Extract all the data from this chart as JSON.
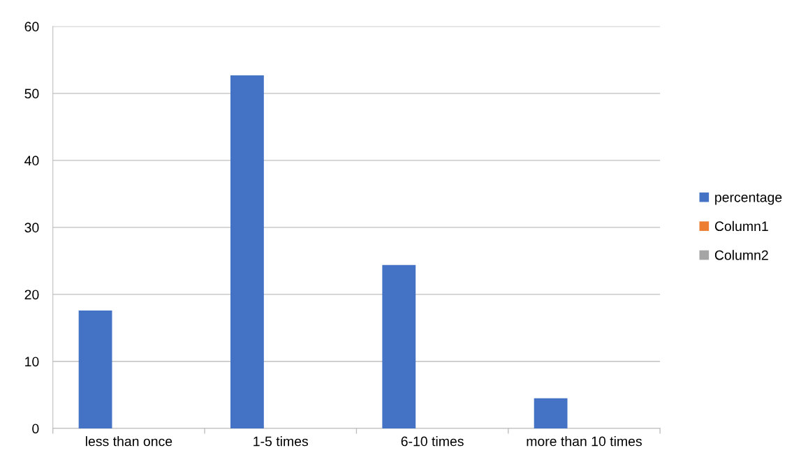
{
  "chart_data": {
    "type": "bar",
    "categories": [
      "less than once",
      "1-5 times",
      "6-10 times",
      "more than 10 times"
    ],
    "series": [
      {
        "name": "percentage",
        "color": "#4472c4",
        "values": [
          17.6,
          52.7,
          24.4,
          4.5
        ]
      },
      {
        "name": "Column1",
        "color": "#ed7d31",
        "values": [
          null,
          null,
          null,
          null
        ]
      },
      {
        "name": "Column2",
        "color": "#a5a5a5",
        "values": [
          null,
          null,
          null,
          null
        ]
      }
    ],
    "ylim": [
      0,
      60
    ],
    "yticks": [
      0,
      10,
      20,
      30,
      40,
      50,
      60
    ],
    "grid": "y",
    "legend": "right"
  }
}
